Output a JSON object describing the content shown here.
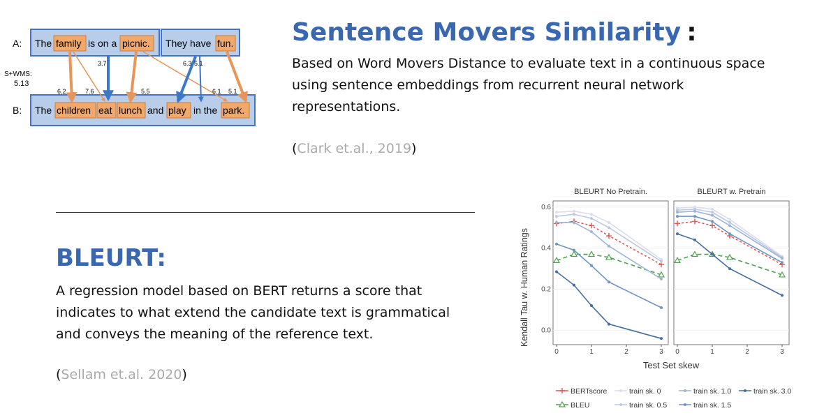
{
  "sms": {
    "title": "Sentence Movers Similarity",
    "colon": ":",
    "description_lines": [
      "Based on Word Movers Distance to evaluate text in a continuous space",
      "using sentence embeddings from recurrent neural network",
      "representations."
    ],
    "citation_open": "(",
    "citation_text": "Clark et.al., 2019",
    "citation_close": ")"
  },
  "diagram": {
    "label_a": "A:",
    "label_b": "B:",
    "metric_label": "S+WMS:",
    "metric_value": "5.13",
    "sentence_a": {
      "part1": [
        "The",
        "family",
        "is on a",
        "picnic."
      ],
      "part2": [
        "They have",
        "fun."
      ]
    },
    "sentence_b": [
      "The",
      "children",
      "eat",
      "lunch",
      "and",
      "play",
      "in the",
      "park."
    ],
    "weights": [
      "3.7",
      "6.3",
      "5.1",
      "6.2",
      "7.6",
      "5.5",
      "6.1",
      "5.1"
    ],
    "colors": {
      "box_fill": "#b7cdea",
      "box_border": "#4472c4",
      "word_fill": "#f0a96a",
      "word_border": "#c8803f",
      "orange_arrow": "#e8955a",
      "blue_arrow": "#3a78c8"
    }
  },
  "bleurt": {
    "title": "BLEURT:",
    "description_lines": [
      "A regression model based on BERT returns a score that",
      "indicates to what extend the candidate text is grammatical",
      "and conveys the meaning of the reference text."
    ],
    "citation_open": "(",
    "citation_text": "Sellam et.al. 2020",
    "citation_close": ")"
  },
  "chart_data": {
    "type": "line",
    "panels": [
      {
        "title": "BLEURT No Pretrain.",
        "series": [
          {
            "name": "BERTscore",
            "x": [
              0,
              0.5,
              1,
              1.5,
              3
            ],
            "y": [
              0.52,
              0.53,
              0.51,
              0.46,
              0.32
            ]
          },
          {
            "name": "BLEU",
            "x": [
              0,
              0.5,
              1,
              1.5,
              3
            ],
            "y": [
              0.34,
              0.37,
              0.37,
              0.355,
              0.27
            ]
          },
          {
            "name": "train sk. 0",
            "x": [
              0,
              0.5,
              1,
              1.5,
              3
            ],
            "y": [
              0.575,
              0.58,
              0.565,
              0.525,
              0.345
            ]
          },
          {
            "name": "train sk. 0.5",
            "x": [
              0,
              0.5,
              1,
              1.5,
              3
            ],
            "y": [
              0.555,
              0.565,
              0.545,
              0.5,
              0.335
            ]
          },
          {
            "name": "train sk. 1.0",
            "x": [
              0,
              0.5,
              1,
              1.5,
              3
            ],
            "y": [
              0.525,
              0.525,
              0.48,
              0.41,
              0.25
            ]
          },
          {
            "name": "train sk. 1.5",
            "x": [
              0,
              0.5,
              1,
              1.5,
              3
            ],
            "y": [
              0.42,
              0.39,
              0.315,
              0.235,
              0.11
            ]
          },
          {
            "name": "train sk. 3.0",
            "x": [
              0,
              0.5,
              1,
              1.5,
              3
            ],
            "y": [
              0.285,
              0.22,
              0.12,
              0.03,
              -0.04
            ]
          }
        ]
      },
      {
        "title": "BLEURT w. Pretrain",
        "series": [
          {
            "name": "BERTscore",
            "x": [
              0,
              0.5,
              1,
              1.5,
              3
            ],
            "y": [
              0.52,
              0.53,
              0.51,
              0.46,
              0.32
            ]
          },
          {
            "name": "BLEU",
            "x": [
              0,
              0.5,
              1,
              1.5,
              3
            ],
            "y": [
              0.34,
              0.37,
              0.37,
              0.355,
              0.27
            ]
          },
          {
            "name": "train sk. 0",
            "x": [
              0,
              0.5,
              1,
              1.5,
              3
            ],
            "y": [
              0.595,
              0.6,
              0.59,
              0.54,
              0.36
            ]
          },
          {
            "name": "train sk. 0.5",
            "x": [
              0,
              0.5,
              1,
              1.5,
              3
            ],
            "y": [
              0.585,
              0.59,
              0.575,
              0.525,
              0.355
            ]
          },
          {
            "name": "train sk. 1.0",
            "x": [
              0,
              0.5,
              1,
              1.5,
              3
            ],
            "y": [
              0.575,
              0.58,
              0.56,
              0.51,
              0.35
            ]
          },
          {
            "name": "train sk. 1.5",
            "x": [
              0,
              0.5,
              1,
              1.5,
              3
            ],
            "y": [
              0.555,
              0.555,
              0.53,
              0.47,
              0.33
            ]
          },
          {
            "name": "train sk. 3.0",
            "x": [
              0,
              0.5,
              1,
              1.5,
              3
            ],
            "y": [
              0.47,
              0.44,
              0.37,
              0.3,
              0.17
            ]
          }
        ]
      }
    ],
    "xlabel": "Test Set skew",
    "ylabel": "Kendall Tau w. Human Ratings",
    "xticks": [
      "0",
      "1",
      "2",
      "3"
    ],
    "yticks": [
      "0.0",
      "0.2",
      "0.4",
      "0.6"
    ],
    "xlim": [
      -0.1,
      3.2
    ],
    "ylim": [
      -0.07,
      0.63
    ],
    "legend": [
      {
        "name": "BERTscore",
        "color": "#e05555"
      },
      {
        "name": "BLEU",
        "color": "#4fa04f"
      },
      {
        "name": "train sk. 0",
        "color": "#dcdcf0"
      },
      {
        "name": "train sk. 0.5",
        "color": "#bcc8e4"
      },
      {
        "name": "train sk. 1.0",
        "color": "#9cb4d8"
      },
      {
        "name": "train sk. 1.5",
        "color": "#6e94c4"
      },
      {
        "name": "train sk. 3.0",
        "color": "#456e9c"
      }
    ],
    "legend_placement": "bottom"
  }
}
